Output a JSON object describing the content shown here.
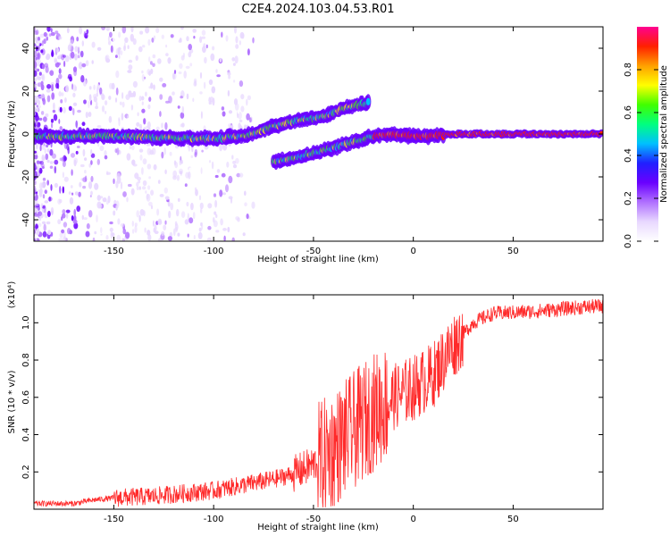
{
  "title": "C2E4.2024.103.04.53.R01",
  "chart_data": [
    {
      "type": "heatmap",
      "xlabel": "Height of straight line (km)",
      "ylabel": "Frequency (Hz)",
      "xlim": [
        -190,
        95
      ],
      "ylim": [
        -50,
        50
      ],
      "xticks": [
        -150,
        -100,
        -50,
        0,
        50
      ],
      "yticks": [
        -40,
        -20,
        0,
        20,
        40
      ],
      "colorbar": {
        "label": "Normalized spectral amplitude",
        "range": [
          0.0,
          1.0
        ],
        "ticks": [
          "0.0",
          "0.2",
          "0.4",
          "0.6",
          "0.8"
        ],
        "tick_values": [
          0.0,
          0.2,
          0.4,
          0.6,
          0.8
        ],
        "colormap": [
          "#ffffff",
          "#e8d8ff",
          "#b070ff",
          "#6a00ff",
          "#2020ff",
          "#00c0ff",
          "#00ff80",
          "#40ff00",
          "#ffff00",
          "#ffa000",
          "#ff2000",
          "#ff0090"
        ]
      },
      "ridges": [
        {
          "points": [
            [
              -190,
              -1
            ],
            [
              -150,
              -1
            ],
            [
              -120,
              -2
            ],
            [
              -100,
              -2
            ],
            [
              -85,
              -1
            ],
            [
              -75,
              2
            ],
            [
              -65,
              5
            ],
            [
              -55,
              7
            ],
            [
              -45,
              8
            ],
            [
              -35,
              12
            ],
            [
              -25,
              14
            ],
            [
              -22,
              15
            ]
          ]
        },
        {
          "points": [
            [
              -70,
              -13
            ],
            [
              -60,
              -11
            ],
            [
              -50,
              -9
            ],
            [
              -42,
              -7
            ],
            [
              -35,
              -5
            ],
            [
              -28,
              -3
            ],
            [
              -20,
              -1
            ],
            [
              -12,
              0
            ],
            [
              0,
              -1
            ],
            [
              10,
              -1
            ],
            [
              20,
              0
            ],
            [
              40,
              0
            ],
            [
              60,
              0
            ],
            [
              80,
              0
            ],
            [
              95,
              0
            ]
          ]
        }
      ]
    },
    {
      "type": "line",
      "xlabel": "Height of straight line (km)",
      "ylabel": "SNR (10 * v/v)",
      "yunit": "(x10⁴)",
      "xlim": [
        -190,
        95
      ],
      "ylim": [
        0.0,
        1.15
      ],
      "xticks": [
        -150,
        -100,
        -50,
        0,
        50
      ],
      "yticks": [
        0.2,
        0.4,
        0.6,
        0.8,
        1.0
      ],
      "ytick_labels": [
        "0.2",
        "0.4",
        "0.6",
        "0.8",
        "1.0"
      ],
      "series": [
        {
          "color": "#ff2a2a",
          "envelope": [
            {
              "x": -190,
              "y": 0.03
            },
            {
              "x": -170,
              "y": 0.03
            },
            {
              "x": -160,
              "y": 0.05
            },
            {
              "x": -150,
              "y": 0.06
            },
            {
              "x": -130,
              "y": 0.07
            },
            {
              "x": -110,
              "y": 0.09
            },
            {
              "x": -100,
              "y": 0.1
            },
            {
              "x": -90,
              "y": 0.12
            },
            {
              "x": -80,
              "y": 0.14
            },
            {
              "x": -70,
              "y": 0.16
            },
            {
              "x": -60,
              "y": 0.19
            },
            {
              "x": -50,
              "y": 0.24
            },
            {
              "x": -40,
              "y": 0.32
            },
            {
              "x": -30,
              "y": 0.42
            },
            {
              "x": -20,
              "y": 0.52
            },
            {
              "x": -10,
              "y": 0.6
            },
            {
              "x": 0,
              "y": 0.65
            },
            {
              "x": 10,
              "y": 0.72
            },
            {
              "x": 20,
              "y": 0.88
            },
            {
              "x": 30,
              "y": 1.0
            },
            {
              "x": 40,
              "y": 1.05
            },
            {
              "x": 60,
              "y": 1.06
            },
            {
              "x": 80,
              "y": 1.08
            },
            {
              "x": 95,
              "y": 1.09
            }
          ]
        }
      ]
    }
  ]
}
